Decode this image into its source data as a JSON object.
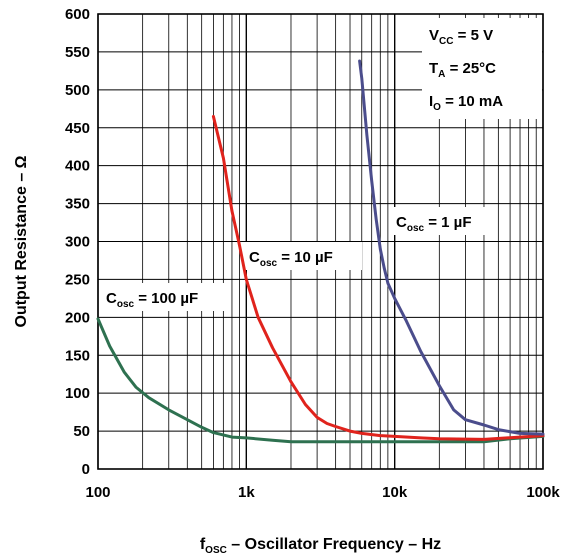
{
  "chart_data": {
    "type": "line",
    "xscale": "log",
    "xlim": [
      100,
      100000
    ],
    "ylim": [
      0,
      600
    ],
    "grid": true,
    "xlabel": {
      "main": "f",
      "sub": "OSC",
      "rest": " – Oscillator Frequency – Hz"
    },
    "ylabel": "Output Resistance – Ω",
    "x_tick_labels": [
      {
        "value": 100,
        "label": "100"
      },
      {
        "value": 1000,
        "label": "1k"
      },
      {
        "value": 10000,
        "label": "10k"
      },
      {
        "value": 100000,
        "label": "100k"
      }
    ],
    "y_ticks": [
      0,
      50,
      100,
      150,
      200,
      250,
      300,
      350,
      400,
      450,
      500,
      550,
      600
    ],
    "conditions": [
      {
        "main": "V",
        "sub": "CC",
        "rest": " = 5 V"
      },
      {
        "main": "T",
        "sub": "A",
        "rest": " = 25°C"
      },
      {
        "main": "I",
        "sub": "O",
        "rest": " = 10 mA"
      }
    ],
    "series": [
      {
        "name": {
          "main": "C",
          "sub": "osc",
          "rest": " = 100 µF"
        },
        "color": "#2e7150",
        "x": [
          100,
          120,
          150,
          180,
          220,
          300,
          400,
          500,
          600,
          800,
          1000,
          1500,
          2000,
          3000,
          5000,
          10000,
          20000,
          40000,
          60000,
          100000
        ],
        "y": [
          198,
          162,
          128,
          108,
          94,
          78,
          65,
          55,
          48,
          42,
          41,
          38,
          36,
          36,
          36,
          36,
          36,
          36,
          40,
          43
        ]
      },
      {
        "name": {
          "main": "C",
          "sub": "osc",
          "rest": " = 10 µF"
        },
        "color": "#e0231c",
        "x": [
          600,
          700,
          800,
          900,
          1000,
          1200,
          1500,
          2000,
          2500,
          3000,
          3500,
          4000,
          5000,
          6000,
          8000,
          10000,
          15000,
          20000,
          40000,
          100000
        ],
        "y": [
          465,
          410,
          340,
          295,
          250,
          200,
          160,
          115,
          85,
          68,
          60,
          56,
          50,
          47,
          44,
          43,
          41,
          40,
          39,
          44
        ]
      },
      {
        "name": {
          "main": "C",
          "sub": "osc",
          "rest": " = 1 µF"
        },
        "color": "#4b4d8c",
        "x": [
          5800,
          6000,
          6500,
          7000,
          7500,
          8000,
          8500,
          9000,
          10000,
          12000,
          15000,
          20000,
          25000,
          30000,
          40000,
          50000,
          70000,
          100000
        ],
        "y": [
          538,
          515,
          440,
          380,
          330,
          290,
          265,
          245,
          225,
          195,
          155,
          110,
          78,
          65,
          58,
          52,
          47,
          46
        ]
      }
    ]
  }
}
